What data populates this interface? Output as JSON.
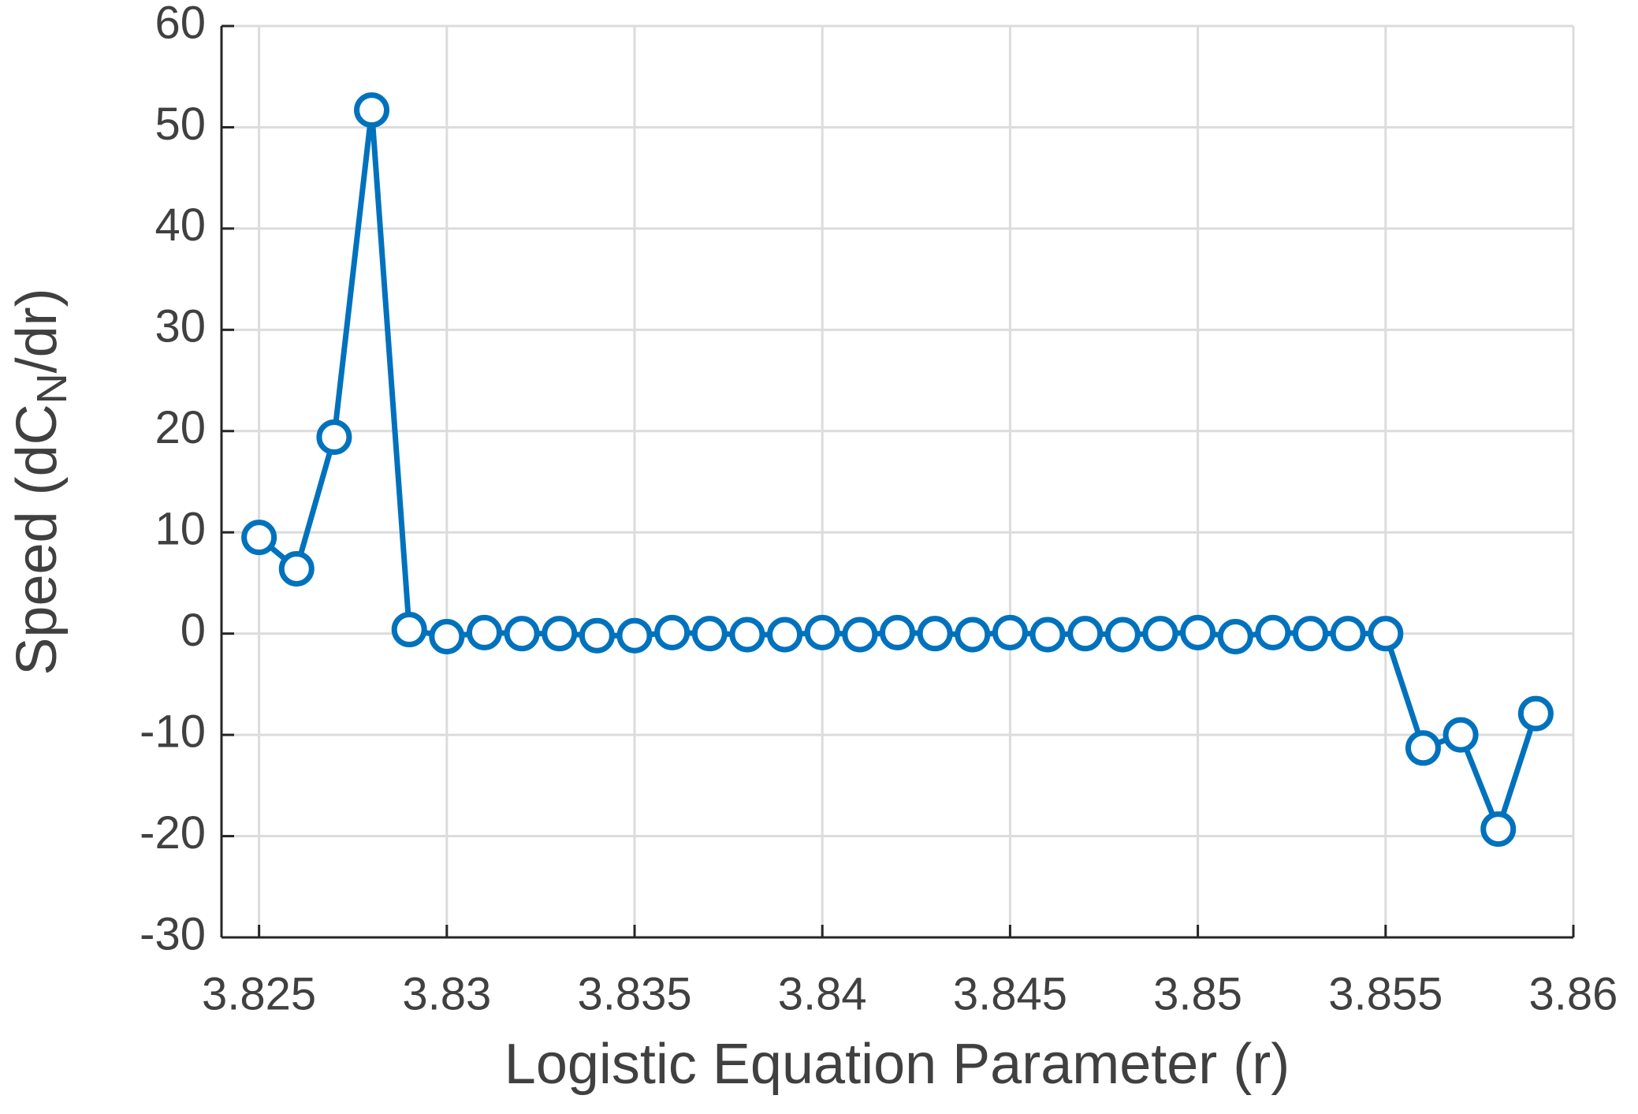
{
  "chart_data": {
    "type": "line",
    "xlabel": "Logistic Equation Parameter (r)",
    "ylabel": [
      "Speed (dC",
      "N",
      "/dr)"
    ],
    "x": [
      3.825,
      3.826,
      3.827,
      3.828,
      3.829,
      3.83,
      3.831,
      3.832,
      3.833,
      3.834,
      3.835,
      3.836,
      3.837,
      3.838,
      3.839,
      3.84,
      3.841,
      3.842,
      3.843,
      3.844,
      3.845,
      3.846,
      3.847,
      3.848,
      3.849,
      3.85,
      3.851,
      3.852,
      3.853,
      3.854,
      3.855,
      3.856,
      3.857,
      3.858,
      3.859
    ],
    "values": [
      9.5,
      6.4,
      19.4,
      51.7,
      0.4,
      -0.3,
      0.1,
      0,
      0,
      -0.2,
      -0.2,
      0.1,
      0,
      -0.1,
      -0.1,
      0.1,
      -0.1,
      0.1,
      0,
      -0.1,
      0.1,
      -0.1,
      0,
      -0.1,
      0,
      0.1,
      -0.3,
      0.1,
      0,
      0,
      0,
      -11.3,
      -10.0,
      -19.3,
      -7.9
    ],
    "color": "#0072bd",
    "xlim": [
      3.824,
      3.86
    ],
    "xticks": [
      3.825,
      3.83,
      3.835,
      3.84,
      3.845,
      3.85,
      3.855,
      3.86
    ],
    "ylim": [
      -30,
      60
    ],
    "yticks": [
      -30,
      -20,
      -10,
      0,
      10,
      20,
      30,
      40,
      50,
      60
    ],
    "grid": true,
    "markers": "open-circle"
  }
}
